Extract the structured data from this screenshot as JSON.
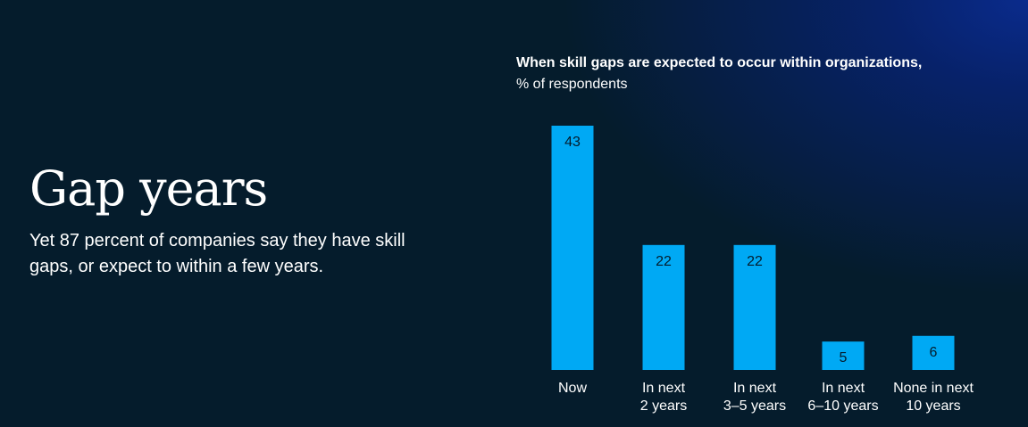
{
  "headline": "Gap years",
  "subtext": "Yet 87 percent of companies say they have skill gaps, or expect to within a few years.",
  "colors": {
    "background": "#051c2c",
    "bar": "#00a9f4",
    "glow": "#0a2b8c"
  },
  "chart_data": {
    "type": "bar",
    "title": "When skill gaps are expected to occur within organizations,",
    "subtitle": "% of respondents",
    "categories": [
      [
        "Now"
      ],
      [
        "In next",
        "2 years"
      ],
      [
        "In next",
        "3–5 years"
      ],
      [
        "In next",
        "6–10 years"
      ],
      [
        "None in next",
        "10 years"
      ]
    ],
    "values": [
      43,
      22,
      22,
      5,
      6
    ],
    "ylim": [
      0,
      43
    ],
    "xlabel": "",
    "ylabel": ""
  }
}
